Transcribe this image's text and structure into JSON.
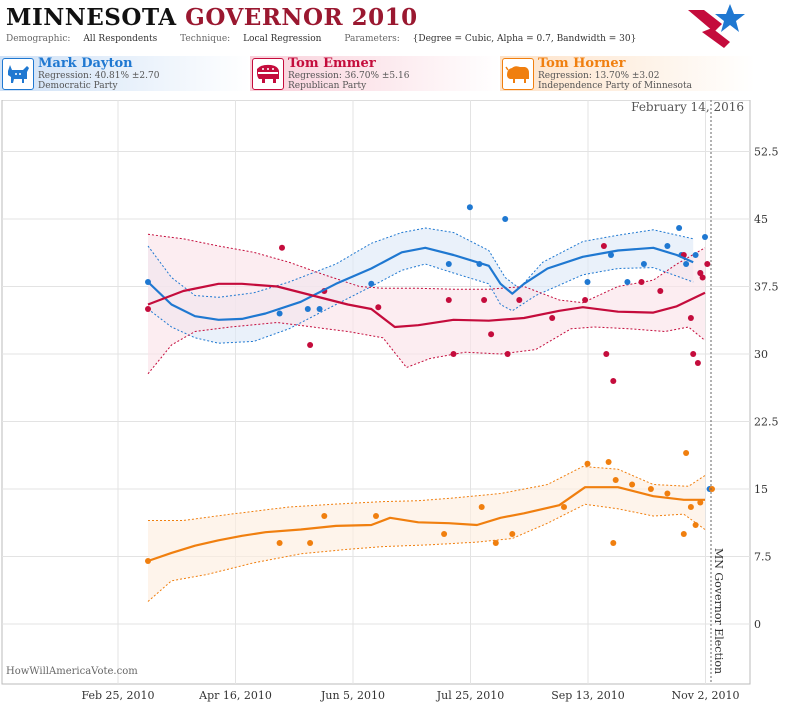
{
  "title": {
    "part1": "MINNESOTA",
    "part2": "GOVERNOR 2010"
  },
  "params": {
    "demographic_label": "Demographic:",
    "demographic": "All Respondents",
    "technique_label": "Technique:",
    "technique": "Local Regression",
    "parameters_label": "Parameters:",
    "parameters": "{Degree = Cubic, Alpha = 0.7, Bandwidth = 30}"
  },
  "candidates": [
    {
      "name": "Mark Dayton",
      "regression": "Regression: 40.81% ±2.70",
      "party": "Democratic Party",
      "color": "#1f78d1",
      "icon": "donkey-icon"
    },
    {
      "name": "Tom Emmer",
      "regression": "Regression: 36.70% ±5.16",
      "party": "Republican Party",
      "color": "#c40c3c",
      "icon": "elephant-icon"
    },
    {
      "name": "Tom Horner",
      "regression": "Regression: 13.70% ±3.02",
      "party": "Independence Party  of Minnesota",
      "color": "#f07f0f",
      "icon": "bison-icon"
    }
  ],
  "date_label": "February 14, 2016",
  "watermark": "HowWillAmericaVote.com",
  "chart_data": {
    "type": "line",
    "x_ticks": [
      "Feb 25, 2010",
      "Apr 16, 2010",
      "Jun 5, 2010",
      "Jul 25, 2010",
      "Sep 13, 2010",
      "Nov 2, 2010"
    ],
    "y_ticks": [
      "52.5",
      "45",
      "37.5",
      "30",
      "22.5",
      "15",
      "7.5",
      "0"
    ],
    "ylim": [
      -3,
      58
    ],
    "annotation": "MN Governor Election",
    "x_domain_days": [
      0,
      250
    ],
    "series": [
      {
        "name": "Mark Dayton",
        "color": "#1f78d1",
        "fill": "#dfe9f7",
        "trend": [
          [
            0,
            38
          ],
          [
            10,
            35.5
          ],
          [
            20,
            34.2
          ],
          [
            30,
            33.8
          ],
          [
            40,
            33.9
          ],
          [
            50,
            34.5
          ],
          [
            65,
            35.8
          ],
          [
            80,
            37.8
          ],
          [
            95,
            39.5
          ],
          [
            108,
            41.3
          ],
          [
            118,
            41.8
          ],
          [
            130,
            41
          ],
          [
            145,
            39.8
          ],
          [
            150,
            37.8
          ],
          [
            155,
            36.7
          ],
          [
            160,
            37.8
          ],
          [
            170,
            39.5
          ],
          [
            185,
            40.8
          ],
          [
            200,
            41.5
          ],
          [
            215,
            41.8
          ],
          [
            225,
            41
          ],
          [
            232,
            40.2
          ]
        ],
        "upper": [
          [
            0,
            42
          ],
          [
            10,
            38.5
          ],
          [
            20,
            36.5
          ],
          [
            30,
            36.3
          ],
          [
            45,
            36.8
          ],
          [
            60,
            38
          ],
          [
            80,
            40
          ],
          [
            95,
            42.3
          ],
          [
            108,
            43.5
          ],
          [
            118,
            44
          ],
          [
            130,
            43.5
          ],
          [
            145,
            41.5
          ],
          [
            152,
            38.5
          ],
          [
            158,
            37.3
          ],
          [
            168,
            40.2
          ],
          [
            185,
            42.5
          ],
          [
            200,
            43.2
          ],
          [
            215,
            43.8
          ],
          [
            232,
            42.8
          ]
        ],
        "lower": [
          [
            0,
            35
          ],
          [
            10,
            33
          ],
          [
            20,
            31.8
          ],
          [
            30,
            31.2
          ],
          [
            45,
            31.4
          ],
          [
            60,
            32.8
          ],
          [
            80,
            35.5
          ],
          [
            95,
            37.5
          ],
          [
            108,
            39.3
          ],
          [
            118,
            40
          ],
          [
            130,
            39
          ],
          [
            145,
            37.8
          ],
          [
            150,
            35.5
          ],
          [
            155,
            34.8
          ],
          [
            165,
            36.5
          ],
          [
            185,
            38.8
          ],
          [
            200,
            39.5
          ],
          [
            215,
            39.6
          ],
          [
            232,
            38
          ]
        ],
        "points": [
          [
            0,
            38
          ],
          [
            56,
            34.5
          ],
          [
            68,
            35
          ],
          [
            73,
            35
          ],
          [
            95,
            37.8
          ],
          [
            128,
            40
          ],
          [
            141,
            40
          ],
          [
            137,
            46.3
          ],
          [
            152,
            45
          ],
          [
            187,
            38
          ],
          [
            197,
            41
          ],
          [
            204,
            38
          ],
          [
            211,
            40
          ],
          [
            221,
            42
          ],
          [
            226,
            44
          ],
          [
            227,
            41
          ],
          [
            229,
            40
          ],
          [
            233,
            41
          ],
          [
            235,
            39
          ],
          [
            237,
            43
          ],
          [
            239,
            15
          ]
        ]
      },
      {
        "name": "Tom Emmer",
        "color": "#c40c3c",
        "fill": "#fbe3e9",
        "trend": [
          [
            0,
            35.5
          ],
          [
            15,
            37
          ],
          [
            30,
            37.8
          ],
          [
            40,
            37.8
          ],
          [
            55,
            37.5
          ],
          [
            70,
            36.5
          ],
          [
            85,
            35.5
          ],
          [
            95,
            35
          ],
          [
            105,
            33
          ],
          [
            115,
            33.2
          ],
          [
            130,
            33.8
          ],
          [
            145,
            33.7
          ],
          [
            160,
            34
          ],
          [
            175,
            34.8
          ],
          [
            185,
            35.2
          ],
          [
            200,
            34.7
          ],
          [
            215,
            34.6
          ],
          [
            225,
            35.3
          ],
          [
            237,
            36.8
          ]
        ],
        "upper": [
          [
            0,
            43.3
          ],
          [
            15,
            42.8
          ],
          [
            30,
            42
          ],
          [
            45,
            41.3
          ],
          [
            60,
            40.2
          ],
          [
            75,
            38.8
          ],
          [
            90,
            37.5
          ],
          [
            100,
            37.3
          ],
          [
            115,
            37.3
          ],
          [
            130,
            37.2
          ],
          [
            145,
            37.2
          ],
          [
            160,
            37.5
          ],
          [
            175,
            36
          ],
          [
            185,
            35.7
          ],
          [
            200,
            37.5
          ],
          [
            215,
            38.2
          ],
          [
            225,
            40
          ],
          [
            237,
            41.8
          ]
        ],
        "lower": [
          [
            0,
            27.8
          ],
          [
            10,
            31
          ],
          [
            20,
            32.5
          ],
          [
            35,
            33
          ],
          [
            55,
            33.5
          ],
          [
            70,
            33
          ],
          [
            85,
            32.5
          ],
          [
            100,
            31.8
          ],
          [
            110,
            28.5
          ],
          [
            120,
            29.5
          ],
          [
            135,
            30.2
          ],
          [
            150,
            30
          ],
          [
            165,
            30.5
          ],
          [
            180,
            32.8
          ],
          [
            190,
            33
          ],
          [
            205,
            32.8
          ],
          [
            220,
            32.5
          ],
          [
            230,
            33
          ],
          [
            237,
            31.5
          ]
        ],
        "points": [
          [
            0,
            35
          ],
          [
            57,
            41.8
          ],
          [
            69,
            31
          ],
          [
            75,
            37
          ],
          [
            98,
            35.2
          ],
          [
            128,
            36
          ],
          [
            130,
            30
          ],
          [
            143,
            36
          ],
          [
            146,
            32.2
          ],
          [
            153,
            30
          ],
          [
            158,
            36
          ],
          [
            172,
            34
          ],
          [
            186,
            36
          ],
          [
            194,
            42
          ],
          [
            195,
            30
          ],
          [
            198,
            27
          ],
          [
            210,
            38
          ],
          [
            218,
            37
          ],
          [
            228,
            41
          ],
          [
            231,
            34
          ],
          [
            232,
            30
          ],
          [
            234,
            29
          ],
          [
            235,
            39
          ],
          [
            238,
            40
          ],
          [
            236,
            38.5
          ]
        ]
      },
      {
        "name": "Tom Horner",
        "color": "#f07f0f",
        "fill": "#fdeee0",
        "trend": [
          [
            0,
            7
          ],
          [
            10,
            7.9
          ],
          [
            20,
            8.7
          ],
          [
            30,
            9.3
          ],
          [
            40,
            9.8
          ],
          [
            50,
            10.2
          ],
          [
            65,
            10.5
          ],
          [
            80,
            10.9
          ],
          [
            95,
            11
          ],
          [
            103,
            11.8
          ],
          [
            115,
            11.3
          ],
          [
            128,
            11.2
          ],
          [
            140,
            11
          ],
          [
            150,
            11.8
          ],
          [
            160,
            12.3
          ],
          [
            175,
            13.2
          ],
          [
            186,
            15.2
          ],
          [
            200,
            15.2
          ],
          [
            215,
            14.2
          ],
          [
            228,
            13.8
          ],
          [
            237,
            13.8
          ]
        ],
        "upper": [
          [
            0,
            11.5
          ],
          [
            15,
            11.5
          ],
          [
            35,
            12.2
          ],
          [
            60,
            13
          ],
          [
            85,
            13.4
          ],
          [
            100,
            13.6
          ],
          [
            115,
            13.7
          ],
          [
            130,
            14
          ],
          [
            150,
            14.5
          ],
          [
            170,
            15.5
          ],
          [
            185,
            17.5
          ],
          [
            200,
            17.2
          ],
          [
            215,
            15.5
          ],
          [
            230,
            15.3
          ],
          [
            237,
            16.5
          ]
        ],
        "lower": [
          [
            0,
            2.5
          ],
          [
            10,
            4.8
          ],
          [
            25,
            5.5
          ],
          [
            45,
            6.8
          ],
          [
            65,
            7.8
          ],
          [
            85,
            8.3
          ],
          [
            100,
            8.6
          ],
          [
            120,
            8.8
          ],
          [
            140,
            9.1
          ],
          [
            155,
            9.5
          ],
          [
            170,
            11.2
          ],
          [
            186,
            13.3
          ],
          [
            200,
            12.8
          ],
          [
            215,
            12
          ],
          [
            228,
            12.2
          ],
          [
            237,
            10.5
          ]
        ],
        "points": [
          [
            0,
            7
          ],
          [
            56,
            9
          ],
          [
            69,
            9
          ],
          [
            75,
            12
          ],
          [
            97,
            12
          ],
          [
            126,
            10
          ],
          [
            142,
            13
          ],
          [
            148,
            9
          ],
          [
            155,
            10
          ],
          [
            177,
            13
          ],
          [
            187,
            17.8
          ],
          [
            196,
            18
          ],
          [
            199,
            16
          ],
          [
            198,
            9
          ],
          [
            206,
            15.5
          ],
          [
            214,
            15
          ],
          [
            221,
            14.5
          ],
          [
            229,
            19
          ],
          [
            231,
            13
          ],
          [
            228,
            10
          ],
          [
            233,
            11
          ],
          [
            235,
            13.5
          ],
          [
            240,
            15
          ]
        ]
      }
    ]
  }
}
